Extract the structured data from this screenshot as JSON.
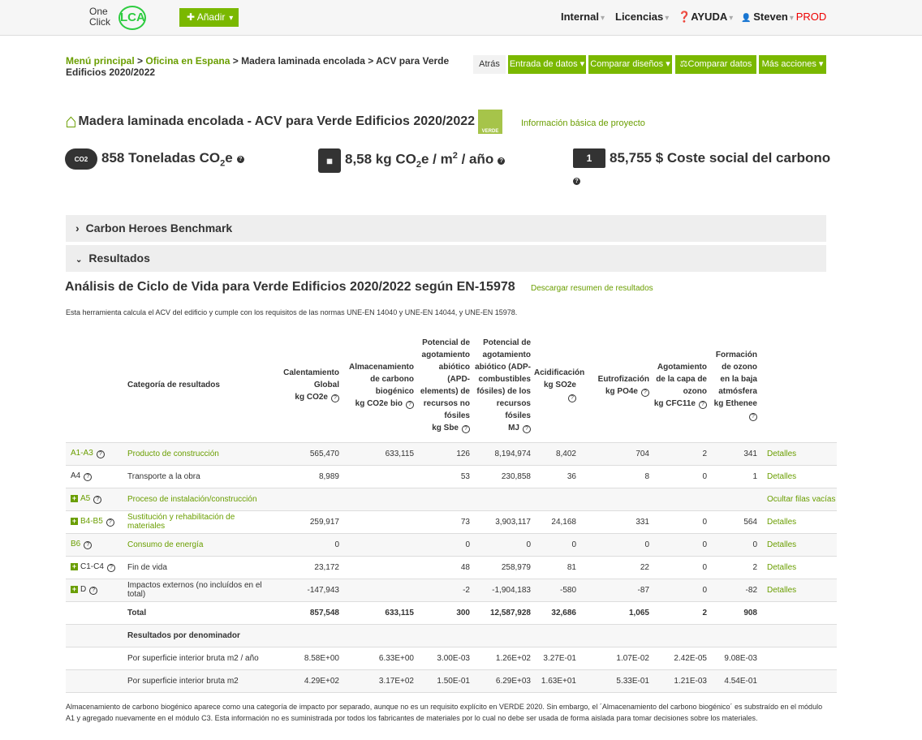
{
  "header": {
    "logo_text_one": "One",
    "logo_text_click": "Click",
    "logo_text_lca": "LCA",
    "add_label": "Añadir",
    "nav": [
      {
        "label": "Internal"
      },
      {
        "label": "Licencias"
      },
      {
        "label": "AYUDA"
      },
      {
        "label": "Steven"
      }
    ],
    "env": "PROD"
  },
  "breadcrumb": {
    "items": [
      "Menú principal",
      "Oficina en Espana",
      "Madera laminada encolada",
      "ACV para Verde Edificios 2020/2022"
    ],
    "sep": ">"
  },
  "toolbar": {
    "back": "Atrás",
    "data_entry": "Entrada de datos",
    "compare_designs": "Comparar diseños",
    "compare_data": "Comparar datos",
    "more_actions": "Más acciones"
  },
  "project": {
    "title": "Madera laminada encolada - ACV para Verde Edificios 2020/2022",
    "badge": "VERDE",
    "info_link": "Información básica de proyecto"
  },
  "kpis": {
    "total_value": "858 Toneladas CO",
    "total_sub": "2",
    "total_suffix": "e",
    "co2_icon_text": "CO2",
    "intensity_value": "8,58 kg CO",
    "intensity_sub": "2",
    "intensity_mid": "e / m",
    "intensity_sup": "2",
    "intensity_suffix": " / año",
    "social_cost": "85,755 $ Coste social del carbono",
    "money_icon_text": "1"
  },
  "panels": {
    "benchmark": "Carbon Heroes Benchmark",
    "results": "Resultados"
  },
  "results": {
    "heading": "Análisis de Ciclo de Vida para Verde Edificios 2020/2022 según EN-15978",
    "download": "Descargar resumen de resultados",
    "description": "Esta herramienta calcula el ACV del edificio y cumple con los requisitos de las normas UNE-EN 14040 y UNE-EN 14044, y UNE-EN 15978.",
    "columns": [
      {
        "name": "Categoría de resultados"
      },
      {
        "name": "Calentamiento Global",
        "unit": "kg CO2e"
      },
      {
        "name": "Almacenamiento de carbono biogénico",
        "unit": "kg CO2e bio"
      },
      {
        "name": "Potencial de agotamiento abiótico (APD-elements) de recursos no fósiles",
        "unit": "kg Sbe"
      },
      {
        "name": "Potencial de agotamiento abiótico (ADP-combustibles fósiles) de los recursos fósiles",
        "unit": "MJ"
      },
      {
        "name": "Acidificación",
        "unit": "kg SO2e"
      },
      {
        "name": "Eutrofización",
        "unit": "kg PO4e"
      },
      {
        "name": "Agotamiento de la capa de ozono",
        "unit": "kg CFC11e"
      },
      {
        "name": "Formación de ozono en la baja atmósfera",
        "unit": "kg Ethenee"
      }
    ],
    "rows": [
      {
        "module": "A1-A3",
        "expand": false,
        "green": true,
        "category": "Producto de construcción",
        "values": [
          "565,470",
          "633,115",
          "126",
          "8,194,974",
          "8,402",
          "704",
          "2",
          "341"
        ],
        "action": "Detalles"
      },
      {
        "module": "A4",
        "expand": false,
        "green": false,
        "category": "Transporte a la obra",
        "values": [
          "8,989",
          "",
          "53",
          "230,858",
          "36",
          "8",
          "0",
          "1"
        ],
        "action": "Detalles"
      },
      {
        "module": "A5",
        "expand": true,
        "green": true,
        "category": "Proceso de instalación/construcción",
        "values": [
          "",
          "",
          "",
          "",
          "",
          "",
          "",
          ""
        ],
        "action": "Ocultar filas vacías"
      },
      {
        "module": "B4-B5",
        "expand": true,
        "green": true,
        "category": "Sustitución y rehabilitación de materiales",
        "values": [
          "259,917",
          "",
          "73",
          "3,903,117",
          "24,168",
          "331",
          "0",
          "564"
        ],
        "action": "Detalles"
      },
      {
        "module": "B6",
        "expand": false,
        "green": true,
        "category": "Consumo de energía",
        "values": [
          "0",
          "",
          "0",
          "0",
          "0",
          "0",
          "0",
          "0"
        ],
        "action": "Detalles"
      },
      {
        "module": "C1-C4",
        "expand": true,
        "green": false,
        "category": "Fin de vida",
        "values": [
          "23,172",
          "",
          "48",
          "258,979",
          "81",
          "22",
          "0",
          "2"
        ],
        "action": "Detalles"
      },
      {
        "module": "D",
        "expand": true,
        "green": false,
        "category": "Impactos externos (no incluídos en el total)",
        "values": [
          "-147,943",
          "",
          "-2",
          "-1,904,183",
          "-580",
          "-87",
          "0",
          "-82"
        ],
        "action": "Detalles"
      }
    ],
    "total": {
      "label": "Total",
      "values": [
        "857,548",
        "633,115",
        "300",
        "12,587,928",
        "32,686",
        "1,065",
        "2",
        "908"
      ]
    },
    "denominator_label": "Resultados por denominador",
    "denominators": [
      {
        "label": "Por superficie interior bruta m2 / año",
        "values": [
          "8.58E+00",
          "6.33E+00",
          "3.00E-03",
          "1.26E+02",
          "3.27E-01",
          "1.07E-02",
          "2.42E-05",
          "9.08E-03"
        ]
      },
      {
        "label": "Por superficie interior bruta m2",
        "values": [
          "4.29E+02",
          "3.17E+02",
          "1.50E-01",
          "6.29E+03",
          "1.63E+01",
          "5.33E-01",
          "1.21E-03",
          "4.54E-01"
        ]
      }
    ],
    "footnote": "Almacenamiento de carbono biogénico aparece como una categoría de impacto por separado, aunque no es un requisito explícito en VERDE 2020. Sin embargo, el ´Almacenamiento del carbono biogénico´ es substraído en el módulo A1 y agregado nuevamente en el módulo C3. Esta información no es suministrada por todos los fabricantes de materiales por lo cual no debe ser usada de forma aislada para tomar decisiones sobre los materiales."
  },
  "colors": {
    "brand_green": "#7ab800",
    "link_green": "#6a9e00",
    "env_red": "#ee0000"
  }
}
